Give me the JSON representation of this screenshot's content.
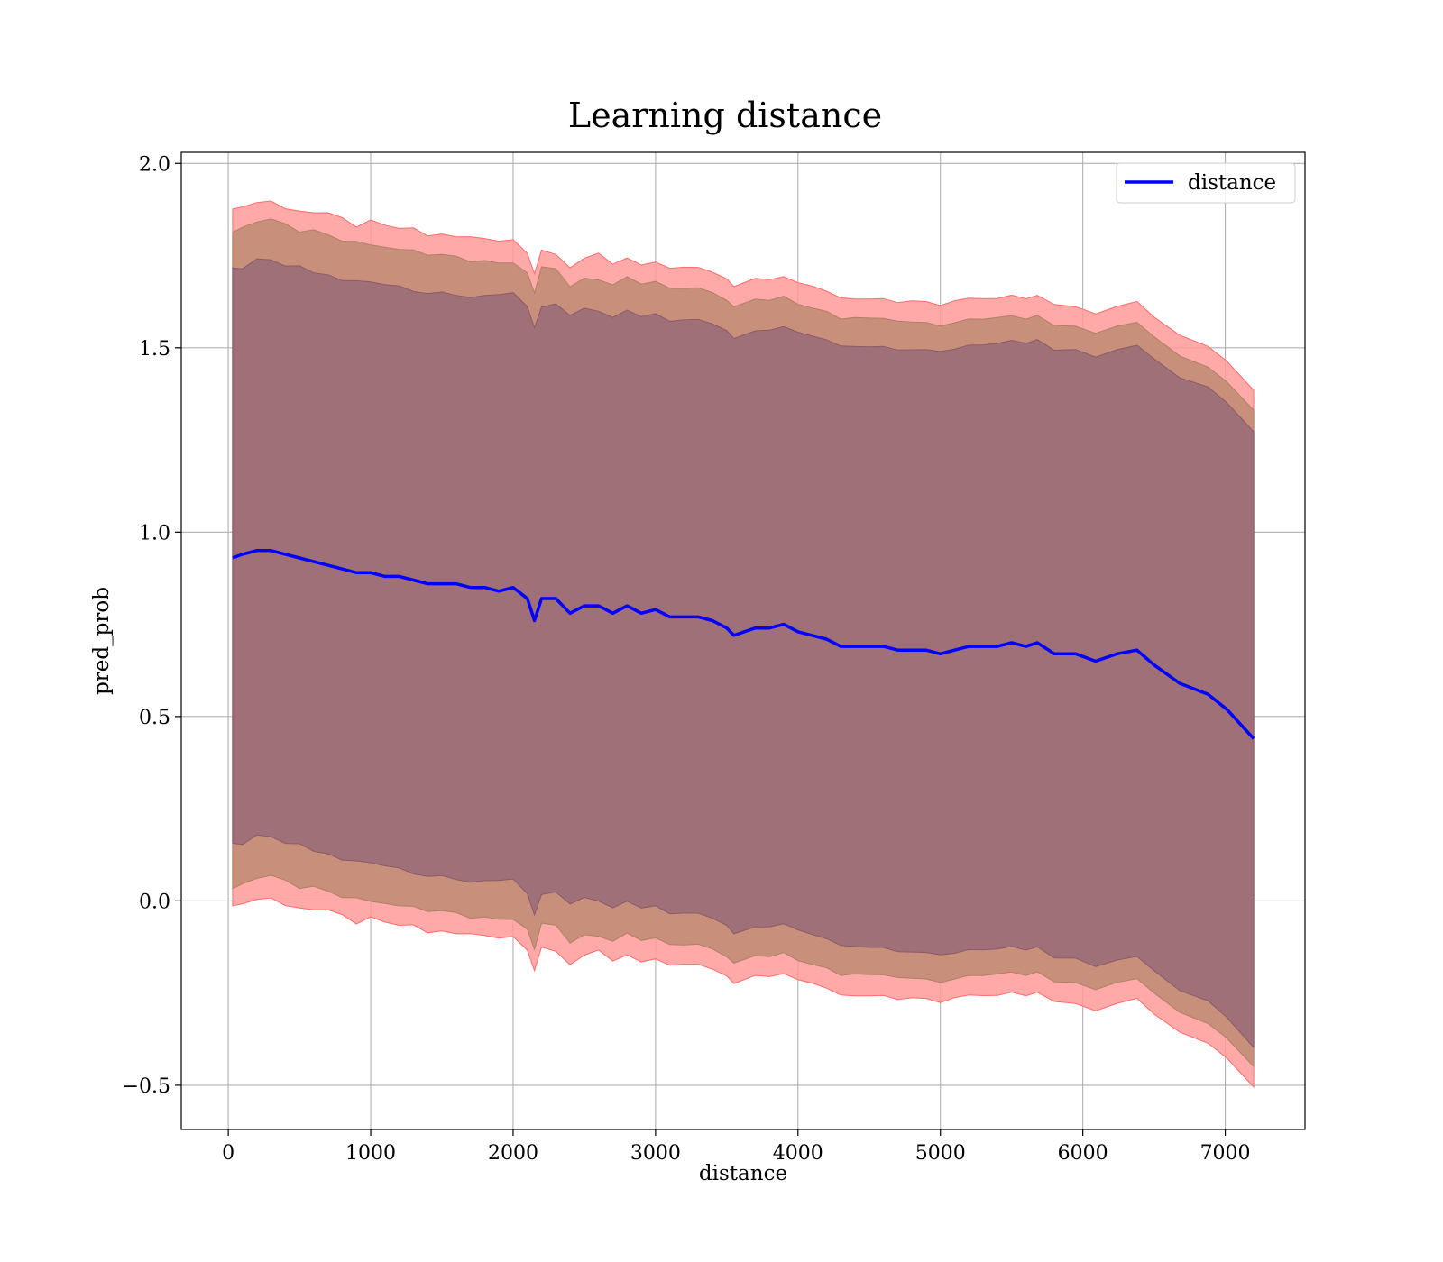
{
  "chart_data": {
    "type": "line",
    "title": "Learning distance",
    "xlabel": "distance",
    "ylabel": "pred_prob",
    "xlim": [
      -330,
      7560
    ],
    "ylim": [
      -0.62,
      2.03
    ],
    "xticks": [
      0,
      1000,
      2000,
      3000,
      4000,
      5000,
      6000,
      7000
    ],
    "xtick_labels": [
      "0",
      "1000",
      "2000",
      "3000",
      "4000",
      "5000",
      "6000",
      "7000"
    ],
    "yticks": [
      -0.5,
      0.0,
      0.5,
      1.0,
      1.5,
      2.0
    ],
    "ytick_labels": [
      "−0.5",
      "0.0",
      "0.5",
      "1.0",
      "1.5",
      "2.0"
    ],
    "grid": true,
    "legend": {
      "position": "top-right",
      "entries": [
        "distance"
      ]
    },
    "colors": {
      "line": "#0000ff",
      "band_outer": "#ff9a9a",
      "band_middle": "#c8907a",
      "band_inner": "#a07079"
    },
    "series": [
      {
        "name": "distance",
        "x": [
          30,
          100,
          200,
          300,
          400,
          500,
          600,
          700,
          800,
          900,
          1000,
          1100,
          1200,
          1300,
          1400,
          1500,
          1600,
          1700,
          1800,
          1900,
          2000,
          2100,
          2150,
          2200,
          2300,
          2400,
          2500,
          2600,
          2700,
          2800,
          2900,
          3000,
          3100,
          3200,
          3300,
          3400,
          3500,
          3550,
          3700,
          3800,
          3900,
          4000,
          4100,
          4200,
          4300,
          4400,
          4500,
          4600,
          4700,
          4800,
          4900,
          5000,
          5100,
          5200,
          5300,
          5400,
          5500,
          5600,
          5680,
          5800,
          5950,
          6090,
          6240,
          6380,
          6500,
          6680,
          6880,
          7010,
          7200
        ],
        "values": [
          0.93,
          0.94,
          0.95,
          0.95,
          0.94,
          0.93,
          0.92,
          0.91,
          0.9,
          0.89,
          0.89,
          0.88,
          0.88,
          0.87,
          0.86,
          0.86,
          0.86,
          0.85,
          0.85,
          0.84,
          0.85,
          0.82,
          0.76,
          0.82,
          0.82,
          0.78,
          0.8,
          0.8,
          0.78,
          0.8,
          0.78,
          0.79,
          0.77,
          0.77,
          0.77,
          0.76,
          0.74,
          0.72,
          0.74,
          0.74,
          0.75,
          0.73,
          0.72,
          0.71,
          0.69,
          0.69,
          0.69,
          0.69,
          0.68,
          0.68,
          0.68,
          0.67,
          0.68,
          0.69,
          0.69,
          0.69,
          0.7,
          0.69,
          0.7,
          0.67,
          0.67,
          0.65,
          0.67,
          0.68,
          0.64,
          0.59,
          0.56,
          0.52,
          0.44
        ]
      }
    ]
  }
}
